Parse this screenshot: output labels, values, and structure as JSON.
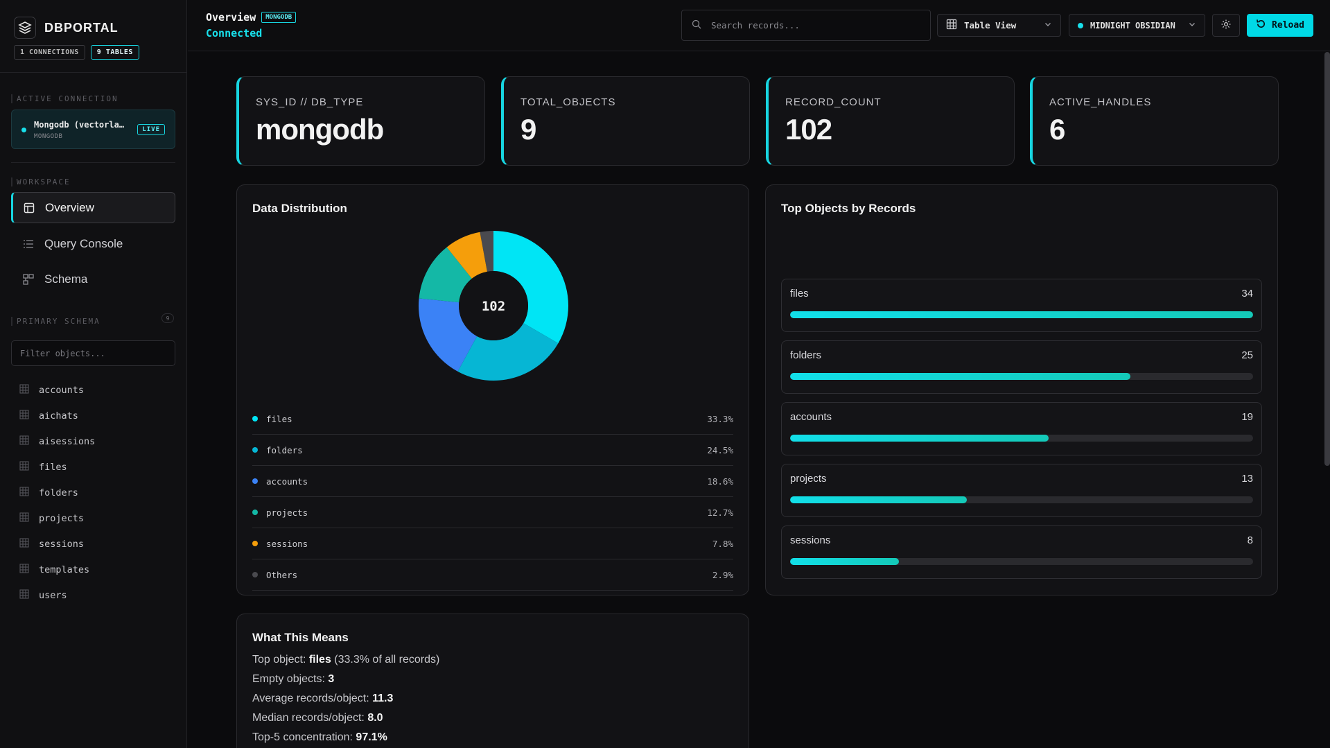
{
  "sidebar": {
    "brand": "DBPORTAL",
    "pills": [
      "1 CONNECTIONS",
      "9 TABLES"
    ],
    "active_connection_label": "ACTIVE CONNECTION",
    "connection": {
      "name": "Mongodb (vectorla…",
      "type": "MONGODB",
      "badge": "LIVE"
    },
    "workspace_label": "WORKSPACE",
    "nav": [
      {
        "label": "Overview",
        "icon": "layout-icon",
        "active": true
      },
      {
        "label": "Query Console",
        "icon": "list-icon",
        "active": false
      },
      {
        "label": "Schema",
        "icon": "schema-icon",
        "active": false
      }
    ],
    "schema_label": "PRIMARY SCHEMA",
    "schema_count": "9",
    "filter_placeholder": "Filter objects...",
    "tables": [
      "accounts",
      "aichats",
      "aisessions",
      "files",
      "folders",
      "projects",
      "sessions",
      "templates",
      "users"
    ]
  },
  "header": {
    "title": "Overview",
    "db_badge": "MONGODB",
    "status": "Connected",
    "search_placeholder": "Search records...",
    "view_label": "Table View",
    "theme_label": "MIDNIGHT OBSIDIAN",
    "reload_label": "Reload"
  },
  "stats": [
    {
      "label": "SYS_ID // DB_TYPE",
      "value": "mongodb"
    },
    {
      "label": "TOTAL_OBJECTS",
      "value": "9"
    },
    {
      "label": "RECORD_COUNT",
      "value": "102"
    },
    {
      "label": "ACTIVE_HANDLES",
      "value": "6"
    }
  ],
  "distribution": {
    "title": "Data Distribution",
    "center_label": "102",
    "items": [
      {
        "name": "files",
        "pct": "33.3%",
        "value": 33.3,
        "color": "#00e5f5"
      },
      {
        "name": "folders",
        "pct": "24.5%",
        "value": 24.5,
        "color": "#06b6d4"
      },
      {
        "name": "accounts",
        "pct": "18.6%",
        "value": 18.6,
        "color": "#3b82f6"
      },
      {
        "name": "projects",
        "pct": "12.7%",
        "value": 12.7,
        "color": "#14b8a6"
      },
      {
        "name": "sessions",
        "pct": "7.8%",
        "value": 7.8,
        "color": "#f59e0b"
      },
      {
        "name": "Others",
        "pct": "2.9%",
        "value": 2.9,
        "color": "#4a4a4f"
      }
    ]
  },
  "top_objects": {
    "title": "Top Objects by Records",
    "max": 34,
    "items": [
      {
        "name": "files",
        "value": "34",
        "n": 34
      },
      {
        "name": "folders",
        "value": "25",
        "n": 25
      },
      {
        "name": "accounts",
        "value": "19",
        "n": 19
      },
      {
        "name": "projects",
        "value": "13",
        "n": 13
      },
      {
        "name": "sessions",
        "value": "8",
        "n": 8
      }
    ]
  },
  "means": {
    "title": "What This Means",
    "lines": [
      {
        "label": "Top object: ",
        "value": "files",
        "suffix": " (33.3% of all records)"
      },
      {
        "label": "Empty objects: ",
        "value": "3",
        "suffix": ""
      },
      {
        "label": "Average records/object: ",
        "value": "11.3",
        "suffix": ""
      },
      {
        "label": "Median records/object: ",
        "value": "8.0",
        "suffix": ""
      },
      {
        "label": "Top-5 concentration: ",
        "value": "97.1%",
        "suffix": ""
      }
    ]
  },
  "colors": {
    "accent": "#17d5e0",
    "background": "#0b0b0d"
  }
}
